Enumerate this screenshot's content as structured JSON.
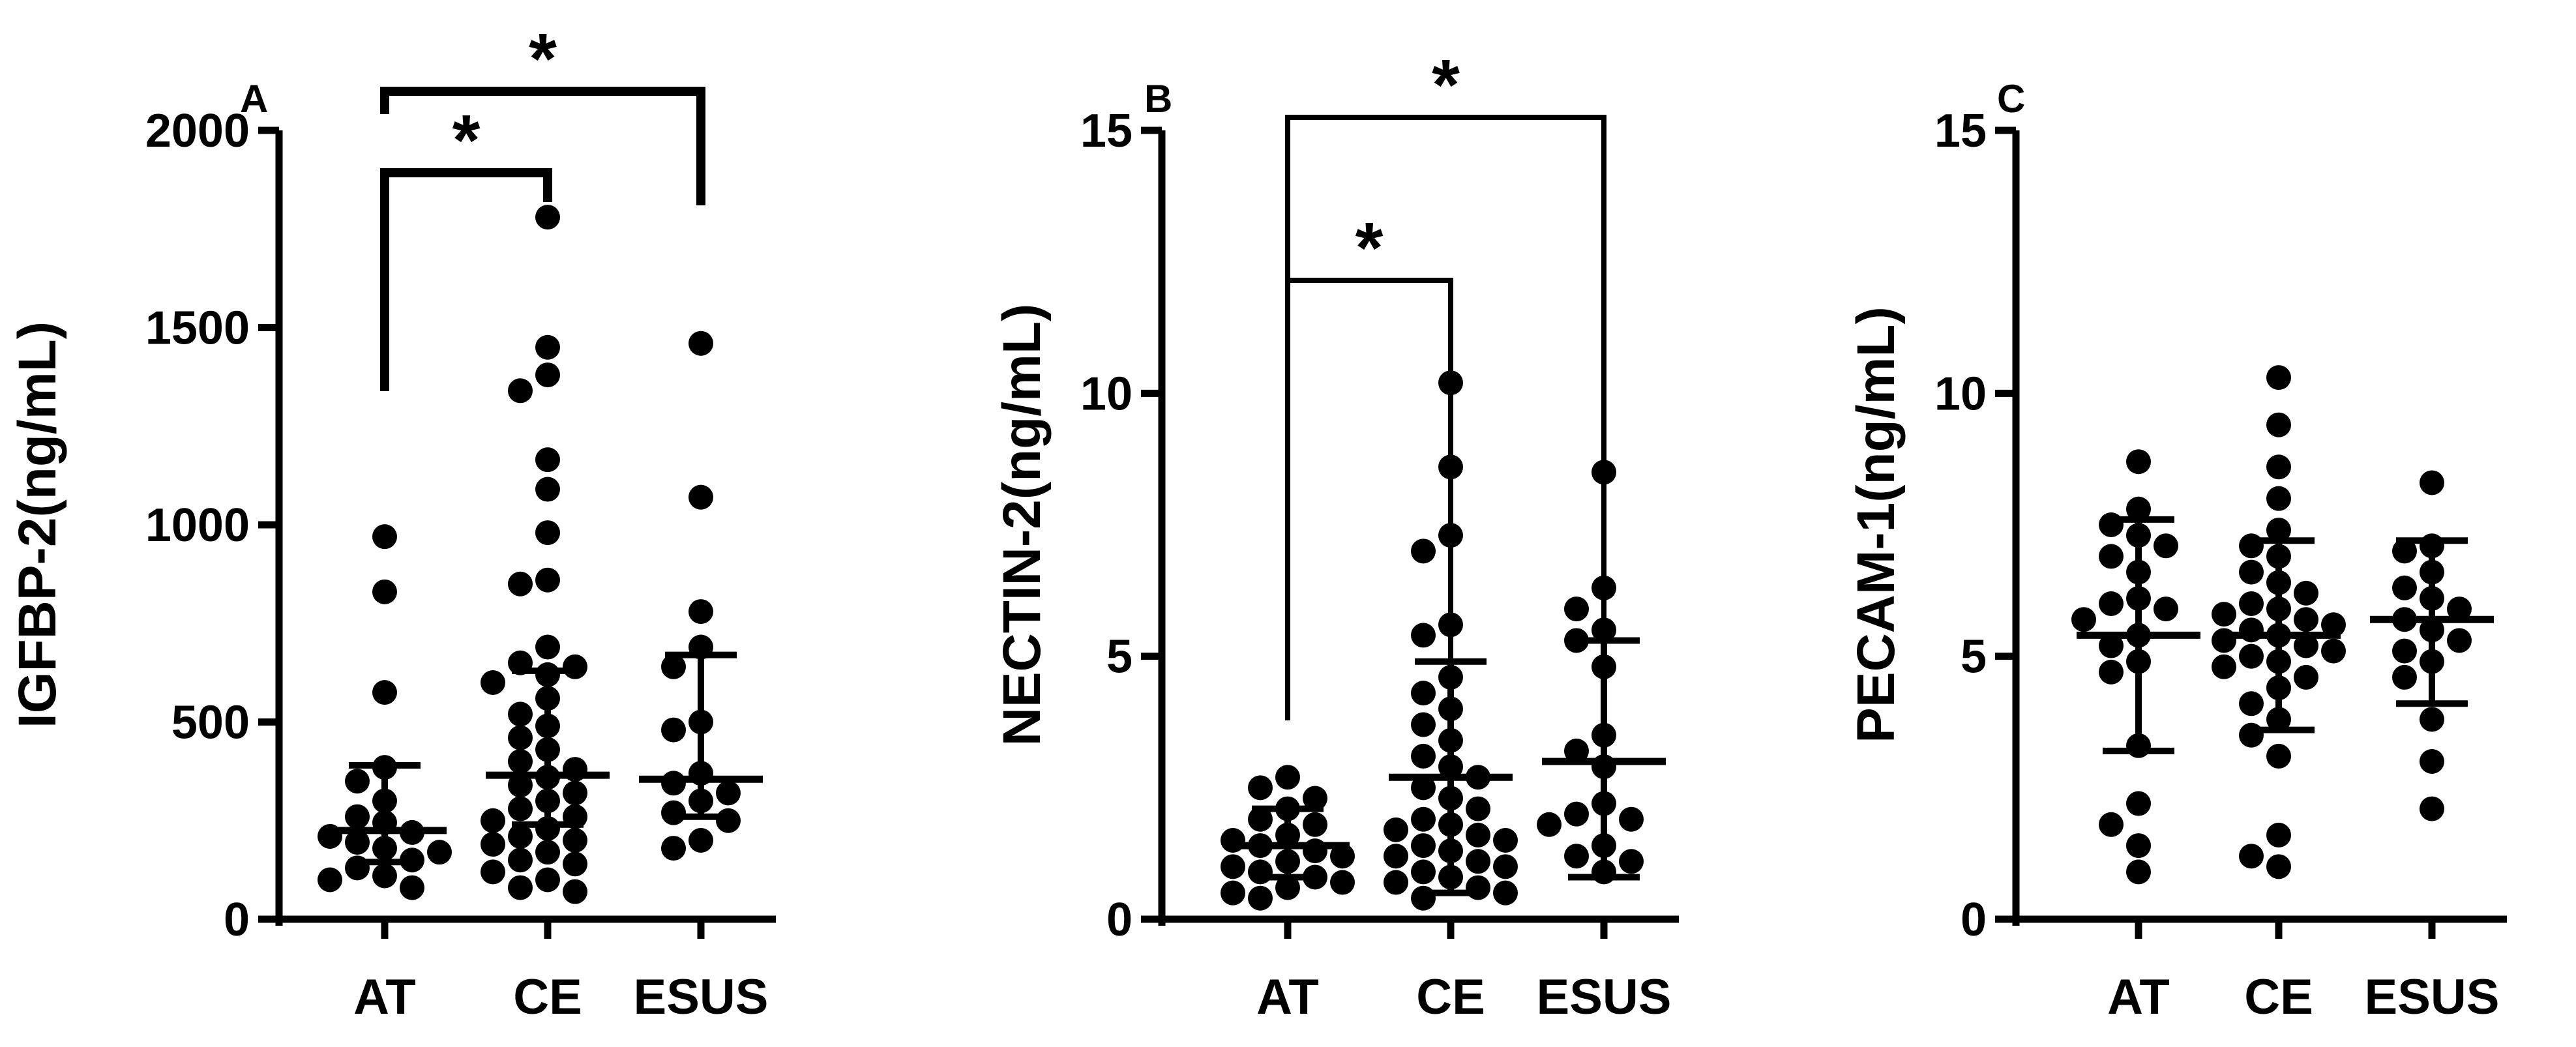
{
  "colors": {
    "ink": "#000000",
    "background": "#ffffff"
  },
  "chart_data": [
    {
      "type": "scatter",
      "panel": "A",
      "ylabel": "IGFBP-2(ng/mL)",
      "ylim": [
        0,
        2000
      ],
      "yticks": [
        0,
        500,
        1000,
        1500,
        2000
      ],
      "categories": [
        "AT",
        "CE",
        "ESUS"
      ],
      "grid": false,
      "groups": [
        {
          "name": "AT",
          "points": [
            970,
            830,
            575,
            385,
            350,
            300,
            260,
            245,
            220,
            210,
            195,
            180,
            170,
            150,
            130,
            110,
            100,
            80
          ],
          "center": 225,
          "error_low": 145,
          "error_high": 390
        },
        {
          "name": "CE",
          "points": [
            1780,
            1450,
            1380,
            1340,
            1165,
            1090,
            980,
            860,
            850,
            690,
            650,
            640,
            620,
            600,
            560,
            520,
            490,
            460,
            430,
            400,
            380,
            360,
            340,
            320,
            300,
            280,
            260,
            250,
            230,
            210,
            200,
            190,
            170,
            150,
            140,
            120,
            100,
            80,
            70
          ],
          "center": 365,
          "error_low": 240,
          "error_high": 630
        },
        {
          "name": "ESUS",
          "points": [
            1460,
            1070,
            780,
            690,
            640,
            500,
            480,
            370,
            345,
            320,
            300,
            270,
            250,
            200,
            180
          ],
          "center": 355,
          "error_low": 260,
          "error_high": 670
        }
      ],
      "significance": [
        {
          "pair": [
            "AT",
            "CE"
          ],
          "label": "*"
        },
        {
          "pair": [
            "AT",
            "ESUS"
          ],
          "label": "*"
        }
      ]
    },
    {
      "type": "scatter",
      "panel": "B",
      "ylabel": "NECTIN-2(ng/mL)",
      "ylim": [
        0,
        15
      ],
      "yticks": [
        0,
        5,
        10,
        15
      ],
      "categories": [
        "AT",
        "CE",
        "ESUS"
      ],
      "grid": false,
      "groups": [
        {
          "name": "AT",
          "points": [
            2.7,
            2.5,
            2.3,
            2.1,
            1.9,
            1.8,
            1.6,
            1.5,
            1.4,
            1.3,
            1.2,
            1.1,
            1.0,
            0.9,
            0.8,
            0.7,
            0.6,
            0.5,
            0.4
          ],
          "center": 1.4,
          "error_low": 0.8,
          "error_high": 2.1
        },
        {
          "name": "CE",
          "points": [
            10.2,
            8.6,
            7.3,
            7.0,
            5.6,
            5.4,
            4.6,
            4.3,
            4.0,
            3.7,
            3.4,
            3.1,
            2.9,
            2.7,
            2.5,
            2.3,
            2.1,
            1.9,
            1.8,
            1.7,
            1.6,
            1.5,
            1.4,
            1.3,
            1.2,
            1.1,
            1.0,
            0.9,
            0.8,
            0.7,
            0.6,
            0.5,
            0.4
          ],
          "center": 2.7,
          "error_low": 0.5,
          "error_high": 4.9
        },
        {
          "name": "ESUS",
          "points": [
            8.5,
            6.3,
            5.9,
            5.5,
            5.3,
            4.8,
            3.5,
            3.2,
            2.9,
            2.2,
            2.0,
            1.9,
            1.8,
            1.4,
            1.2,
            1.1,
            0.9
          ],
          "center": 3.0,
          "error_low": 0.8,
          "error_high": 5.3
        }
      ],
      "significance": [
        {
          "pair": [
            "AT",
            "CE"
          ],
          "label": "*"
        },
        {
          "pair": [
            "AT",
            "ESUS"
          ],
          "label": "*"
        }
      ]
    },
    {
      "type": "scatter",
      "panel": "C",
      "ylabel": "PECAM-1(ng/mL)",
      "ylim": [
        0,
        15
      ],
      "yticks": [
        0,
        5,
        10,
        15
      ],
      "categories": [
        "AT",
        "CE",
        "ESUS"
      ],
      "grid": false,
      "groups": [
        {
          "name": "AT",
          "points": [
            8.7,
            7.8,
            7.5,
            7.3,
            7.1,
            6.9,
            6.6,
            6.1,
            6.0,
            5.9,
            5.7,
            5.4,
            5.2,
            4.9,
            4.7,
            3.3,
            2.2,
            1.8,
            1.4,
            0.9
          ],
          "center": 5.4,
          "error_low": 3.2,
          "error_high": 7.6
        },
        {
          "name": "CE",
          "points": [
            10.3,
            9.4,
            8.6,
            8.0,
            7.4,
            7.1,
            6.9,
            6.6,
            6.4,
            6.2,
            6.0,
            5.9,
            5.8,
            5.7,
            5.6,
            5.5,
            5.4,
            5.3,
            5.2,
            5.1,
            5.0,
            4.9,
            4.8,
            4.6,
            4.4,
            4.1,
            3.8,
            3.5,
            3.1,
            1.6,
            1.2,
            1.0
          ],
          "center": 5.4,
          "error_low": 3.6,
          "error_high": 7.2
        },
        {
          "name": "ESUS",
          "points": [
            8.3,
            7.1,
            7.0,
            6.6,
            6.3,
            6.1,
            5.9,
            5.7,
            5.5,
            5.3,
            5.1,
            4.9,
            4.6,
            3.8,
            3.0,
            2.1
          ],
          "center": 5.7,
          "error_low": 4.1,
          "error_high": 7.2
        }
      ],
      "significance": []
    }
  ]
}
